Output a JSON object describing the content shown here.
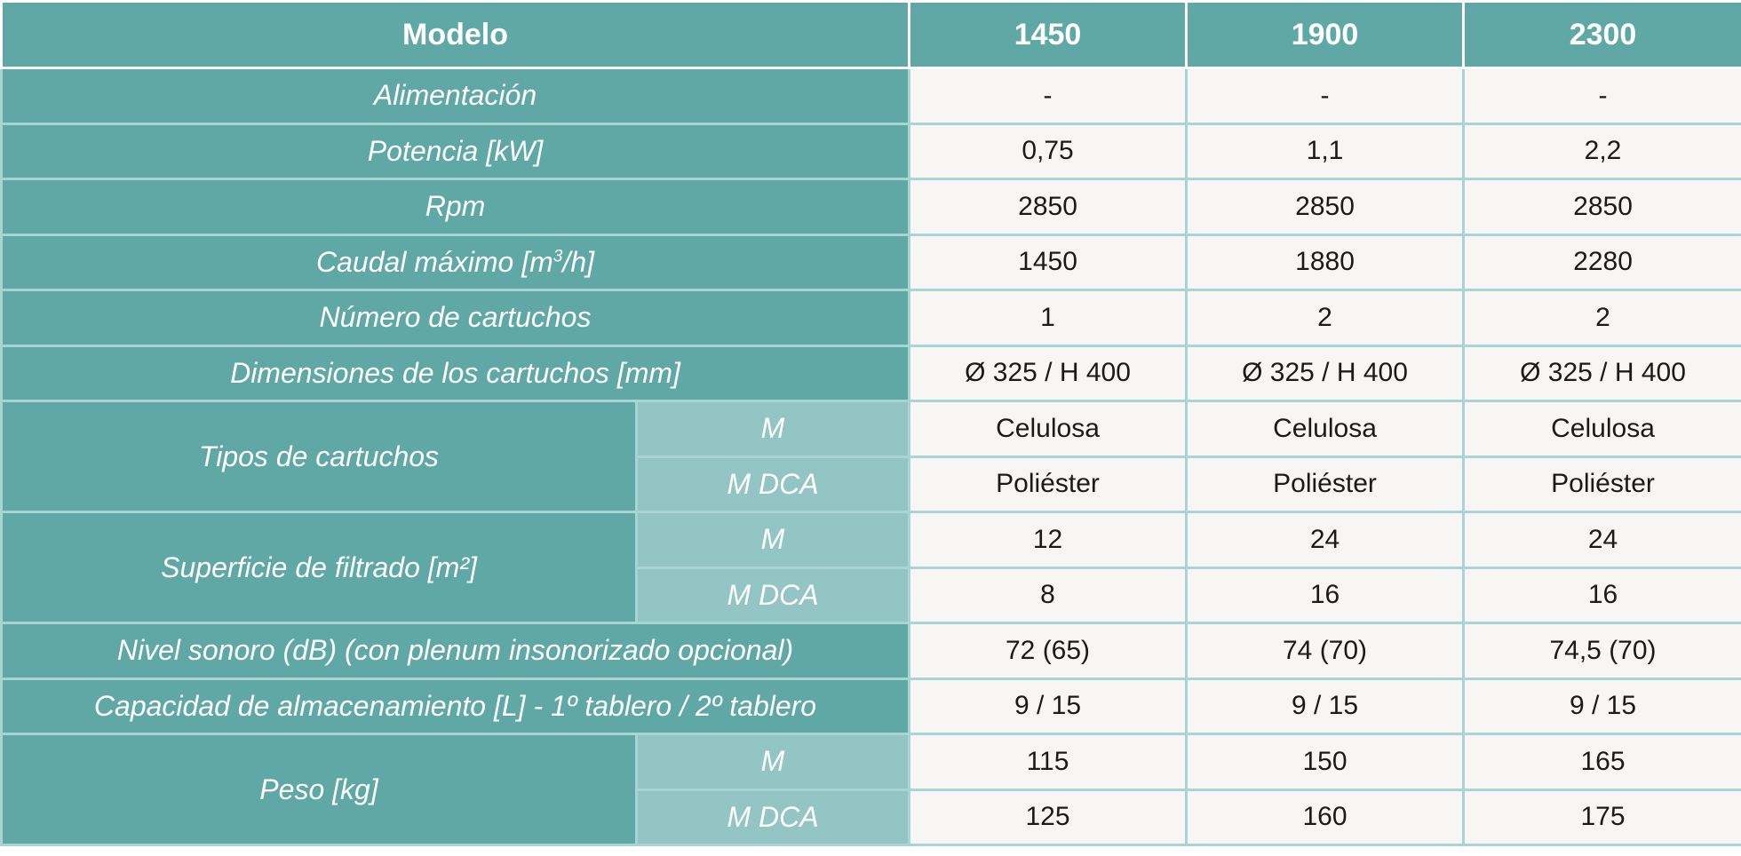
{
  "table": {
    "header": {
      "model_label": "Modelo",
      "models": [
        "1450",
        "1900",
        "2300"
      ]
    },
    "rows": {
      "alimentacion": {
        "label": "Alimentación",
        "values": [
          "-",
          "-",
          "-"
        ]
      },
      "potencia": {
        "label": "Potencia [kW]",
        "values": [
          "0,75",
          "1,1",
          "2,2"
        ]
      },
      "rpm": {
        "label": "Rpm",
        "values": [
          "2850",
          "2850",
          "2850"
        ]
      },
      "caudal": {
        "label_pre": "Caudal máximo [m",
        "label_sup": "3",
        "label_post": "/h]",
        "values": [
          "1450",
          "1880",
          "2280"
        ]
      },
      "numero_cartuchos": {
        "label": "Número de cartuchos",
        "values": [
          "1",
          "2",
          "2"
        ]
      },
      "dimensiones": {
        "label": "Dimensiones de los cartuchos [mm]",
        "values": [
          "Ø 325 / H 400",
          "Ø 325 / H 400",
          "Ø 325 / H 400"
        ]
      },
      "tipos_cartuchos": {
        "label": "Tipos de cartuchos",
        "sub": [
          {
            "label": "M",
            "values": [
              "Celulosa",
              "Celulosa",
              "Celulosa"
            ]
          },
          {
            "label": "M DCA",
            "values": [
              "Poliéster",
              "Poliéster",
              "Poliéster"
            ]
          }
        ]
      },
      "superficie": {
        "label": "Superficie de filtrado [m²]",
        "sub": [
          {
            "label": "M",
            "values": [
              "12",
              "24",
              "24"
            ]
          },
          {
            "label": "M DCA",
            "values": [
              "8",
              "16",
              "16"
            ]
          }
        ]
      },
      "nivel_sonoro": {
        "label": "Nivel sonoro (dB) (con plenum insonorizado opcional)",
        "values": [
          "72 (65)",
          "74 (70)",
          "74,5 (70)"
        ]
      },
      "capacidad": {
        "label": "Capacidad de almacenamiento [L] - 1º tablero / 2º tablero",
        "values": [
          "9 / 15",
          "9 / 15",
          "9 / 15"
        ]
      },
      "peso": {
        "label": "Peso [kg]",
        "sub": [
          {
            "label": "M",
            "values": [
              "115",
              "150",
              "165"
            ]
          },
          {
            "label": "M DCA",
            "values": [
              "125",
              "160",
              "175"
            ]
          }
        ]
      }
    }
  },
  "colors": {
    "header_bg": "#5fa8a6",
    "sub_label_bg": "#93c5c4",
    "value_bg": "#f8f6f4",
    "grid_line": "#a8d5d3"
  }
}
